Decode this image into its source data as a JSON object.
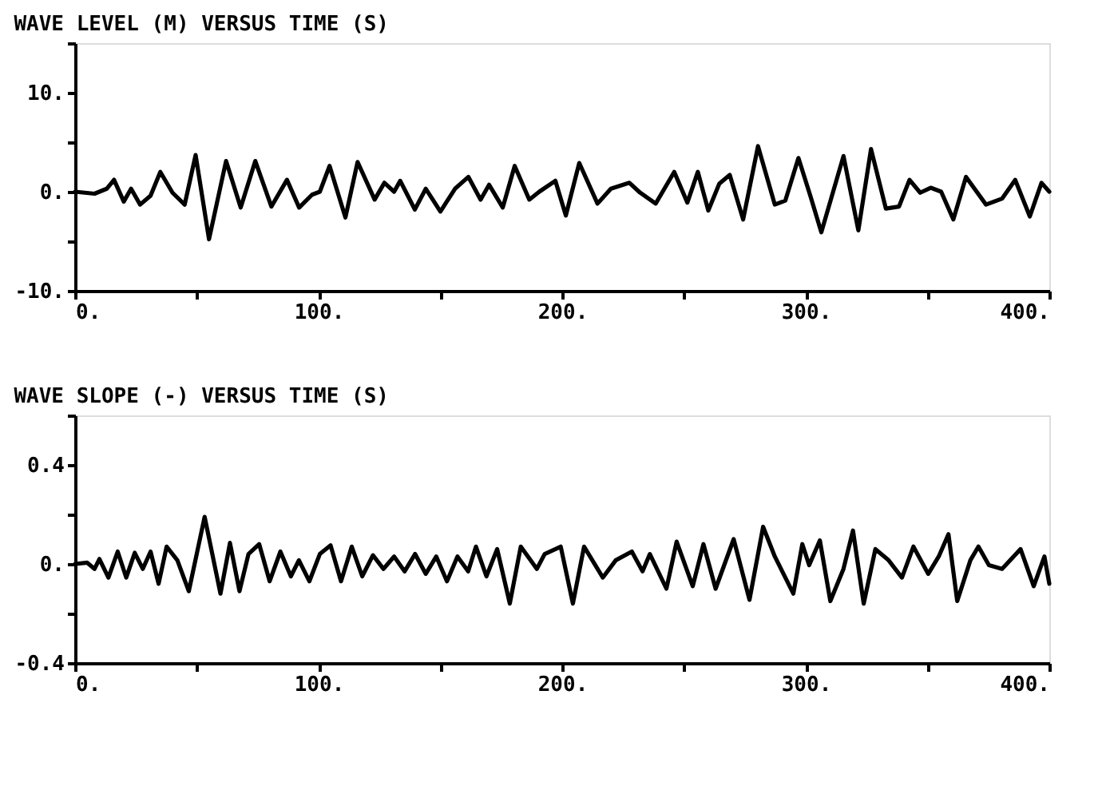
{
  "chart_data": [
    {
      "type": "line",
      "title": "WAVE LEVEL (M) VERSUS TIME (S)",
      "grid": false,
      "marker": "none",
      "line_style": "solid",
      "xlim": [
        0,
        400
      ],
      "ylim": [
        -10,
        15
      ],
      "xticks": [
        {
          "value": 0,
          "label": "0."
        },
        {
          "value": 50,
          "label": null
        },
        {
          "value": 100,
          "label": "100."
        },
        {
          "value": 150,
          "label": null
        },
        {
          "value": 200,
          "label": "200."
        },
        {
          "value": 250,
          "label": null
        },
        {
          "value": 300,
          "label": "300."
        },
        {
          "value": 350,
          "label": null
        },
        {
          "value": 400,
          "label": "400."
        }
      ],
      "yticks": [
        {
          "value": -10,
          "label": "-10."
        },
        {
          "value": -5,
          "label": null
        },
        {
          "value": 0,
          "label": "0."
        },
        {
          "value": 5,
          "label": null
        },
        {
          "value": 10,
          "label": "10."
        },
        {
          "value": 15,
          "label": null
        }
      ],
      "series": [
        {
          "color": "#000000",
          "x": [
            0,
            8,
            13,
            16,
            20,
            23,
            26.7,
            31,
            35,
            40,
            45,
            49.5,
            55,
            62,
            68,
            74,
            80.6,
            87,
            92,
            97.3,
            100.5,
            104.5,
            111,
            116,
            123,
            127,
            131,
            133.5,
            139.5,
            144,
            150,
            156,
            161.5,
            166.5,
            170,
            175.6,
            180.5,
            186.5,
            190.6,
            197.2,
            201.5,
            207,
            214.5,
            220,
            227.6,
            232,
            238.4,
            246,
            251.4,
            255.7,
            260,
            264.5,
            268.8,
            274.3,
            280.4,
            287.3,
            291.6,
            297,
            302,
            306.4,
            315.5,
            321.6,
            326.8,
            332.9,
            338.3,
            342.6,
            347,
            351.3,
            355.6,
            360.6,
            365.8,
            374,
            380.6,
            386,
            392,
            396.8,
            400
          ],
          "values": [
            0,
            -0.2,
            0.3,
            1.2,
            -1,
            0.3,
            -1.3,
            -0.4,
            2,
            -0.1,
            -1.3,
            3.7,
            -4.8,
            3.1,
            -1.6,
            3.1,
            -1.5,
            1.2,
            -1.6,
            -0.3,
            0,
            2.6,
            -2.6,
            3,
            -0.8,
            0.9,
            0,
            1.1,
            -1.8,
            0.3,
            -2,
            0.3,
            1.5,
            -0.8,
            0.7,
            -1.6,
            2.6,
            -0.8,
            0,
            1.1,
            -2.4,
            2.9,
            -1.2,
            0.3,
            0.9,
            -0.1,
            -1.2,
            2,
            -1.1,
            2,
            -1.9,
            0.8,
            1.7,
            -2.8,
            4.6,
            -1.3,
            -0.9,
            3.4,
            -0.5,
            -4.1,
            3.6,
            -3.9,
            4.3,
            -1.7,
            -1.5,
            1.2,
            -0.1,
            0.4,
            0,
            -2.8,
            1.5,
            -1.3,
            -0.7,
            1.2,
            -2.5,
            0.9,
            0
          ]
        }
      ]
    },
    {
      "type": "line",
      "title": "WAVE SLOPE (-) VERSUS TIME (S)",
      "grid": false,
      "marker": "none",
      "line_style": "solid",
      "xlim": [
        0,
        400
      ],
      "ylim": [
        -0.4,
        0.6
      ],
      "xticks": [
        {
          "value": 0,
          "label": "0."
        },
        {
          "value": 50,
          "label": null
        },
        {
          "value": 100,
          "label": "100."
        },
        {
          "value": 150,
          "label": null
        },
        {
          "value": 200,
          "label": "200."
        },
        {
          "value": 250,
          "label": null
        },
        {
          "value": 300,
          "label": "300."
        },
        {
          "value": 350,
          "label": null
        },
        {
          "value": 400,
          "label": "400."
        }
      ],
      "yticks": [
        {
          "value": -0.4,
          "label": "-0.4"
        },
        {
          "value": -0.2,
          "label": null
        },
        {
          "value": 0,
          "label": "0."
        },
        {
          "value": 0.2,
          "label": null
        },
        {
          "value": 0.4,
          "label": "0.4"
        },
        {
          "value": 0.6,
          "label": null
        }
      ],
      "series": [
        {
          "color": "#000000",
          "x": [
            0,
            5,
            8,
            10,
            13.7,
            17.5,
            21,
            24.5,
            27.8,
            31,
            34.3,
            37.6,
            42,
            46.7,
            53.2,
            59.7,
            63.6,
            67.5,
            71.2,
            75.6,
            79.9,
            84.3,
            88.6,
            91.9,
            96.2,
            100.5,
            104.9,
            109.2,
            113.6,
            117.9,
            122.3,
            126.6,
            131,
            135.3,
            139.6,
            144,
            148.3,
            152.7,
            157,
            161.4,
            164.6,
            168.9,
            173.3,
            178.5,
            183,
            189.6,
            192.8,
            199.4,
            204.4,
            209,
            216.7,
            222,
            228.6,
            233,
            236,
            242.8,
            247,
            253.6,
            258,
            263,
            270.4,
            276.9,
            282.5,
            287.3,
            294.9,
            298.6,
            301.4,
            305.8,
            310.1,
            315.5,
            319.4,
            323.8,
            328.6,
            334,
            339.5,
            344.2,
            350.3,
            354.6,
            358.6,
            362.2,
            367.6,
            370.9,
            375.2,
            380.6,
            388.2,
            393.6,
            398,
            400
          ],
          "values": [
            0,
            0.005,
            -0.02,
            0.02,
            -0.055,
            0.05,
            -0.055,
            0.045,
            -0.02,
            0.05,
            -0.08,
            0.07,
            0.015,
            -0.11,
            0.19,
            -0.12,
            0.085,
            -0.11,
            0.04,
            0.08,
            -0.07,
            0.05,
            -0.05,
            0.015,
            -0.07,
            0.04,
            0.075,
            -0.07,
            0.07,
            -0.05,
            0.035,
            -0.02,
            0.03,
            -0.03,
            0.04,
            -0.04,
            0.03,
            -0.07,
            0.03,
            -0.03,
            0.07,
            -0.05,
            0.06,
            -0.16,
            0.07,
            -0.02,
            0.04,
            0.07,
            -0.16,
            0.07,
            -0.055,
            0.015,
            0.05,
            -0.03,
            0.04,
            -0.1,
            0.09,
            -0.09,
            0.08,
            -0.1,
            0.1,
            -0.145,
            0.15,
            0.03,
            -0.12,
            0.08,
            -0.005,
            0.095,
            -0.15,
            -0.02,
            0.135,
            -0.16,
            0.06,
            0.015,
            -0.055,
            0.07,
            -0.04,
            0.03,
            0.12,
            -0.15,
            0.015,
            0.07,
            -0.005,
            -0.02,
            0.06,
            -0.09,
            0.03,
            -0.08
          ]
        }
      ]
    }
  ]
}
